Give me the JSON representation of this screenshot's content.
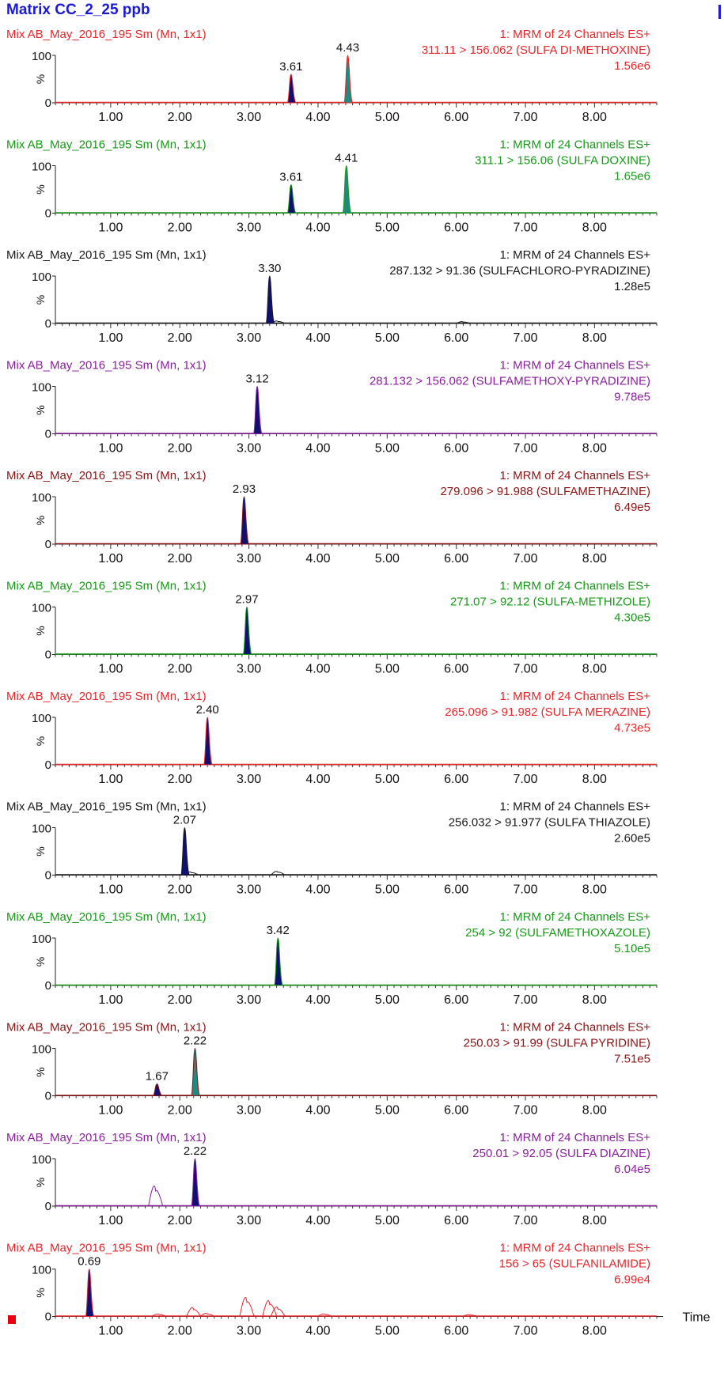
{
  "title": "Matrix CC_2_25 ppb",
  "x_axis_label": "Time",
  "y_axis_label": "%",
  "y_ticks": [
    "100",
    "0"
  ],
  "colors": {
    "title": "#1a1ad6",
    "peak_fill": "#101070",
    "peak_fill_alt": "#1f8a80"
  },
  "chart_data": [
    {
      "type": "line",
      "sample": "Mix AB_May_2016_195 Sm (Mn, 1x1)",
      "function": "1: MRM of 24 Channels ES+",
      "transition": "311.11 > 156.062 (SULFA DI-METHOXINE)",
      "intensity": "1.56e6",
      "color": "#e8272b",
      "peaks": [
        {
          "rt": 3.61,
          "label": "3.61",
          "height": 60,
          "fill": "navy"
        },
        {
          "rt": 4.43,
          "label": "4.43",
          "height": 100,
          "fill": "teal"
        }
      ],
      "noise": [],
      "xlim": [
        0.2,
        8.9
      ],
      "ylim": [
        0,
        100
      ],
      "xticks": [
        1.0,
        2.0,
        3.0,
        4.0,
        5.0,
        6.0,
        7.0,
        8.0
      ]
    },
    {
      "type": "line",
      "sample": "Mix AB_May_2016_195 Sm (Mn, 1x1)",
      "function": "1: MRM of 24 Channels ES+",
      "transition": "311.1 > 156.06 (SULFA DOXINE)",
      "intensity": "1.65e6",
      "color": "#179a17",
      "peaks": [
        {
          "rt": 3.61,
          "label": "3.61",
          "height": 60,
          "fill": "navy"
        },
        {
          "rt": 4.41,
          "label": "4.41",
          "height": 100,
          "fill": "teal"
        }
      ],
      "noise": [],
      "xlim": [
        0.2,
        8.9
      ],
      "ylim": [
        0,
        100
      ],
      "xticks": [
        1.0,
        2.0,
        3.0,
        4.0,
        5.0,
        6.0,
        7.0,
        8.0
      ]
    },
    {
      "type": "line",
      "sample": "Mix AB_May_2016_195 Sm (Mn, 1x1)",
      "function": "1: MRM of 24 Channels ES+",
      "transition": "287.132 > 91.36 (SULFACHLORO-PYRADIZINE)",
      "intensity": "1.28e5",
      "color": "#1a1a1a",
      "peaks": [
        {
          "rt": 3.3,
          "label": "3.30",
          "height": 100,
          "fill": "navy"
        }
      ],
      "noise": [
        {
          "rt": 3.42,
          "height": 4
        },
        {
          "rt": 6.1,
          "height": 3
        }
      ],
      "xlim": [
        0.2,
        8.9
      ],
      "ylim": [
        0,
        100
      ],
      "xticks": [
        1.0,
        2.0,
        3.0,
        4.0,
        5.0,
        6.0,
        7.0,
        8.0
      ]
    },
    {
      "type": "line",
      "sample": "Mix AB_May_2016_195 Sm (Mn, 1x1)",
      "function": "1: MRM of 24 Channels ES+",
      "transition": "281.132 > 156.062 (SULFAMETHOXY-PYRADIZINE)",
      "intensity": "9.78e5",
      "color": "#8b1f9e",
      "peaks": [
        {
          "rt": 3.12,
          "label": "3.12",
          "height": 100,
          "fill": "navy"
        }
      ],
      "noise": [],
      "xlim": [
        0.2,
        8.9
      ],
      "ylim": [
        0,
        100
      ],
      "xticks": [
        1.0,
        2.0,
        3.0,
        4.0,
        5.0,
        6.0,
        7.0,
        8.0
      ]
    },
    {
      "type": "line",
      "sample": "Mix AB_May_2016_195 Sm (Mn, 1x1)",
      "function": "1: MRM of 24 Channels ES+",
      "transition": "279.096 > 91.988 (SULFAMETHAZINE)",
      "intensity": "6.49e5",
      "color": "#8c1414",
      "peaks": [
        {
          "rt": 2.93,
          "label": "2.93",
          "height": 100,
          "fill": "navy"
        }
      ],
      "noise": [],
      "xlim": [
        0.2,
        8.9
      ],
      "ylim": [
        0,
        100
      ],
      "xticks": [
        1.0,
        2.0,
        3.0,
        4.0,
        5.0,
        6.0,
        7.0,
        8.0
      ]
    },
    {
      "type": "line",
      "sample": "Mix AB_May_2016_195 Sm (Mn, 1x1)",
      "function": "1: MRM of 24 Channels ES+",
      "transition": "271.07 > 92.12 (SULFA-METHIZOLE)",
      "intensity": "4.30e5",
      "color": "#179a17",
      "peaks": [
        {
          "rt": 2.97,
          "label": "2.97",
          "height": 100,
          "fill": "navy"
        }
      ],
      "noise": [],
      "xlim": [
        0.2,
        8.9
      ],
      "ylim": [
        0,
        100
      ],
      "xticks": [
        1.0,
        2.0,
        3.0,
        4.0,
        5.0,
        6.0,
        7.0,
        8.0
      ]
    },
    {
      "type": "line",
      "sample": "Mix AB_May_2016_195 Sm (Mn, 1x1)",
      "function": "1: MRM of 24 Channels ES+",
      "transition": "265.096 > 91.982 (SULFA MERAZINE)",
      "intensity": "4.73e5",
      "color": "#e8272b",
      "peaks": [
        {
          "rt": 2.4,
          "label": "2.40",
          "height": 100,
          "fill": "navy"
        }
      ],
      "noise": [],
      "xlim": [
        0.2,
        8.9
      ],
      "ylim": [
        0,
        100
      ],
      "xticks": [
        1.0,
        2.0,
        3.0,
        4.0,
        5.0,
        6.0,
        7.0,
        8.0
      ]
    },
    {
      "type": "line",
      "sample": "Mix AB_May_2016_195 Sm (Mn, 1x1)",
      "function": "1: MRM of 24 Channels ES+",
      "transition": "256.032 > 91.977 (SULFA THIAZOLE)",
      "intensity": "2.60e5",
      "color": "#1a1a1a",
      "peaks": [
        {
          "rt": 2.07,
          "label": "2.07",
          "height": 100,
          "fill": "navy"
        }
      ],
      "noise": [
        {
          "rt": 2.17,
          "height": 5
        },
        {
          "rt": 3.42,
          "height": 6
        }
      ],
      "xlim": [
        0.2,
        8.9
      ],
      "ylim": [
        0,
        100
      ],
      "xticks": [
        1.0,
        2.0,
        3.0,
        4.0,
        5.0,
        6.0,
        7.0,
        8.0
      ]
    },
    {
      "type": "line",
      "sample": "Mix AB_May_2016_195 Sm (Mn, 1x1)",
      "function": "1: MRM of 24 Channels ES+",
      "transition": "254 > 92 (SULFAMETHOXAZOLE)",
      "intensity": "5.10e5",
      "color": "#179a17",
      "peaks": [
        {
          "rt": 3.42,
          "label": "3.42",
          "height": 100,
          "fill": "navy"
        }
      ],
      "noise": [],
      "xlim": [
        0.2,
        8.9
      ],
      "ylim": [
        0,
        100
      ],
      "xticks": [
        1.0,
        2.0,
        3.0,
        4.0,
        5.0,
        6.0,
        7.0,
        8.0
      ]
    },
    {
      "type": "line",
      "sample": "Mix AB_May_2016_195 Sm (Mn, 1x1)",
      "function": "1: MRM of 24 Channels ES+",
      "transition": "250.03 > 91.99 (SULFA PYRIDINE)",
      "intensity": "7.51e5",
      "color": "#8c1414",
      "peaks": [
        {
          "rt": 1.67,
          "label": "1.67",
          "height": 25,
          "fill": "navy"
        },
        {
          "rt": 2.22,
          "label": "2.22",
          "height": 100,
          "fill": "teal"
        }
      ],
      "noise": [],
      "xlim": [
        0.2,
        8.9
      ],
      "ylim": [
        0,
        100
      ],
      "xticks": [
        1.0,
        2.0,
        3.0,
        4.0,
        5.0,
        6.0,
        7.0,
        8.0
      ]
    },
    {
      "type": "line",
      "sample": "Mix AB_May_2016_195 Sm (Mn, 1x1)",
      "function": "1: MRM of 24 Channels ES+",
      "transition": "250.01 > 92.05 (SULFA DIAZINE)",
      "intensity": "6.04e5",
      "color": "#8b1f9e",
      "peaks": [
        {
          "rt": 2.22,
          "label": "2.22",
          "height": 100,
          "fill": "navy"
        }
      ],
      "noise": [
        {
          "rt": 1.65,
          "height": 32
        }
      ],
      "xlim": [
        0.2,
        8.9
      ],
      "ylim": [
        0,
        100
      ],
      "xticks": [
        1.0,
        2.0,
        3.0,
        4.0,
        5.0,
        6.0,
        7.0,
        8.0
      ]
    },
    {
      "type": "line",
      "sample": "Mix AB_May_2016_195 Sm (Mn, 1x1)",
      "function": "1: MRM of 24 Channels ES+",
      "transition": "156 > 65 (SULFANILAMIDE)",
      "intensity": "6.99e4",
      "color": "#e8272b",
      "peaks": [
        {
          "rt": 0.69,
          "label": "0.69",
          "height": 100,
          "fill": "navy"
        }
      ],
      "noise": [
        {
          "rt": 1.7,
          "height": 4
        },
        {
          "rt": 2.2,
          "height": 14
        },
        {
          "rt": 2.4,
          "height": 5
        },
        {
          "rt": 2.97,
          "height": 30
        },
        {
          "rt": 3.3,
          "height": 25
        },
        {
          "rt": 3.42,
          "height": 15
        },
        {
          "rt": 4.1,
          "height": 4
        },
        {
          "rt": 6.2,
          "height": 3
        }
      ],
      "xlim": [
        0.2,
        8.9
      ],
      "ylim": [
        0,
        100
      ],
      "xticks": [
        1.0,
        2.0,
        3.0,
        4.0,
        5.0,
        6.0,
        7.0,
        8.0
      ]
    }
  ]
}
